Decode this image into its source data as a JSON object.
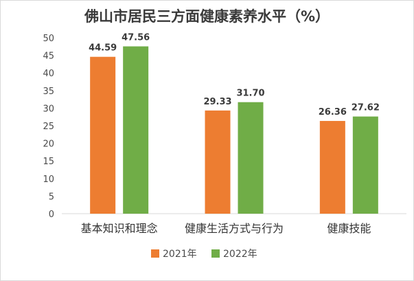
{
  "chart_data": {
    "type": "bar",
    "title": "佛山市居民三方面健康素养水平（%）",
    "categories": [
      "基本知识和理念",
      "健康生活方式与行为",
      "健康技能"
    ],
    "series": [
      {
        "name": "2021年",
        "color": "#ed7d31",
        "values": [
          44.59,
          29.33,
          26.36
        ],
        "labels": [
          "44.59",
          "29.33",
          "26.36"
        ]
      },
      {
        "name": "2022年",
        "color": "#70ad47",
        "values": [
          47.56,
          31.7,
          27.62
        ],
        "labels": [
          "47.56",
          "31.70",
          "27.62"
        ]
      }
    ],
    "yticks": [
      "0",
      "5",
      "10",
      "15",
      "20",
      "25",
      "30",
      "35",
      "40",
      "45",
      "50"
    ],
    "ylim": [
      0,
      50
    ],
    "grid": false,
    "legend_position": "bottom"
  }
}
